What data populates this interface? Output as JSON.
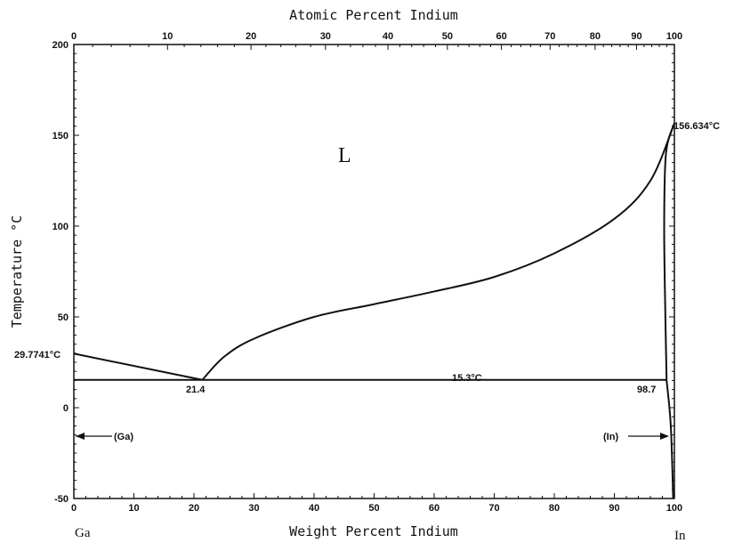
{
  "chart_data": {
    "type": "line",
    "title": "",
    "xlabel": "Weight Percent Indium",
    "x2label": "Atomic Percent Indium",
    "ylabel": "Temperature °C",
    "xlim": [
      0,
      100
    ],
    "ylim": [
      -50,
      200
    ],
    "x_ticks": [
      "0",
      "10",
      "20",
      "30",
      "40",
      "50",
      "60",
      "70",
      "80",
      "90",
      "100"
    ],
    "y_ticks": [
      "-50",
      "0",
      "50",
      "100",
      "150",
      "200"
    ],
    "x2_ticks": [
      {
        "label": "0",
        "wt": 0
      },
      {
        "label": "10",
        "wt": 15.6
      },
      {
        "label": "20",
        "wt": 29.5
      },
      {
        "label": "30",
        "wt": 41.9
      },
      {
        "label": "40",
        "wt": 52.3
      },
      {
        "label": "50",
        "wt": 62.2
      },
      {
        "label": "60",
        "wt": 71.2
      },
      {
        "label": "70",
        "wt": 79.3
      },
      {
        "label": "80",
        "wt": 86.8
      },
      {
        "label": "90",
        "wt": 93.7
      },
      {
        "label": "100",
        "wt": 100
      }
    ],
    "series": [
      {
        "key": "liquidus_ga",
        "values": [
          [
            0,
            29.7741
          ],
          [
            21.4,
            15.3
          ]
        ]
      },
      {
        "key": "liquidus_in",
        "values": [
          [
            21.4,
            15.3
          ],
          [
            25,
            28
          ],
          [
            30,
            38
          ],
          [
            40,
            50
          ],
          [
            50,
            57
          ],
          [
            60,
            64
          ],
          [
            70,
            72
          ],
          [
            80,
            85
          ],
          [
            90,
            104
          ],
          [
            96,
            125
          ],
          [
            100,
            156.634
          ]
        ]
      },
      {
        "key": "solidus_in",
        "values": [
          [
            100,
            156.634
          ],
          [
            98.6,
            140
          ],
          [
            98.3,
            100
          ],
          [
            98.5,
            50
          ],
          [
            98.7,
            15.3
          ]
        ]
      },
      {
        "key": "solvus_in",
        "values": [
          [
            98.7,
            15.3
          ],
          [
            99.4,
            -10
          ],
          [
            99.8,
            -50
          ]
        ]
      },
      {
        "key": "eutectic",
        "values": [
          [
            0,
            15.3
          ],
          [
            98.7,
            15.3
          ]
        ]
      }
    ],
    "annotations": {
      "phase_L": "L",
      "ga_melt": "29.7741°C",
      "in_melt": "156.634°C",
      "eutectic_temp": "15.3°C",
      "eutectic_comp": "21.4",
      "in_solubility": "98.7",
      "ga_phase": "(Ga)",
      "in_phase": "(In)"
    },
    "elements": {
      "left": "Ga",
      "right": "In"
    }
  }
}
